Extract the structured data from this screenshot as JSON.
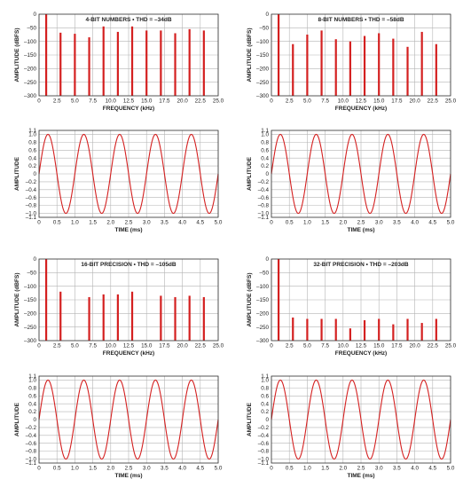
{
  "colors": {
    "signal": "#d42020",
    "grid": "#b4b4b4",
    "axis": "#333333",
    "background": "#ffffff"
  },
  "chart_data": [
    {
      "id": "spec4",
      "type": "bar",
      "subtype": "spectrum",
      "title": "4-BIT NUMBERS • THD = –34dB",
      "xlabel": "FREQUENCY (kHz)",
      "ylabel": "AMPLITUDE (dBFS)",
      "xlim": [
        0,
        25
      ],
      "ylim": [
        -300,
        0
      ],
      "xticks": [
        "0",
        "2.5",
        "5.0",
        "7.5",
        "10.0",
        "12.5",
        "15.0",
        "17.5",
        "20.0",
        "22.5",
        "25.0"
      ],
      "yticks": [
        "0",
        "–50",
        "–100",
        "–150",
        "–200",
        "–250",
        "–300"
      ],
      "grid": true,
      "x": [
        1,
        3,
        5,
        7,
        9,
        11,
        13,
        15,
        17,
        19,
        21,
        23
      ],
      "values": [
        0,
        -68,
        -72,
        -85,
        -45,
        -65,
        -45,
        -60,
        -60,
        -70,
        -55,
        -60
      ]
    },
    {
      "id": "spec8",
      "type": "bar",
      "subtype": "spectrum",
      "title": "8-BIT NUMBERS • THD = –58dB",
      "xlabel": "FREQUENCY (kHz)",
      "ylabel": "AMPLITUDE (dBFS)",
      "xlim": [
        0,
        25
      ],
      "ylim": [
        -300,
        0
      ],
      "xticks": [
        "0",
        "2.5",
        "5.0",
        "7.5",
        "10.0",
        "12.5",
        "15.0",
        "17.5",
        "20.0",
        "22.5",
        "25.0"
      ],
      "yticks": [
        "0",
        "–50",
        "–100",
        "–150",
        "–200",
        "–250",
        "–300"
      ],
      "grid": true,
      "x": [
        1,
        3,
        5,
        7,
        9,
        11,
        13,
        15,
        17,
        19,
        21,
        23
      ],
      "values": [
        0,
        -110,
        -75,
        -60,
        -92,
        -100,
        -80,
        -70,
        -90,
        -120,
        -65,
        -110
      ]
    },
    {
      "id": "spec16",
      "type": "bar",
      "subtype": "spectrum",
      "title": "16-BIT PRECISION • THD = –105dB",
      "xlabel": "FREQUENCY (kHz)",
      "ylabel": "AMPLITUDE (dBFS)",
      "xlim": [
        0,
        25
      ],
      "ylim": [
        -300,
        0
      ],
      "xticks": [
        "0",
        "2.5",
        "5.0",
        "7.5",
        "10.0",
        "12.5",
        "15.0",
        "17.5",
        "20.0",
        "22.5",
        "25.0"
      ],
      "yticks": [
        "0",
        "–50",
        "–100",
        "–150",
        "–200",
        "–250",
        "–300"
      ],
      "grid": true,
      "x": [
        1,
        3,
        7,
        9,
        11,
        13,
        17,
        19,
        21,
        23
      ],
      "values": [
        0,
        -120,
        -140,
        -130,
        -130,
        -120,
        -135,
        -140,
        -135,
        -140
      ]
    },
    {
      "id": "spec32",
      "type": "bar",
      "subtype": "spectrum",
      "title": "32-BIT PRECISION • THD = –203dB",
      "xlabel": "FREQUENCY (kHz)",
      "ylabel": "AMPLITUDE (dBFS)",
      "xlim": [
        0,
        25
      ],
      "ylim": [
        -300,
        0
      ],
      "xticks": [
        "0",
        "2.5",
        "5.0",
        "7.5",
        "10.0",
        "12.5",
        "15.0",
        "17.5",
        "20.0",
        "22.5",
        "25.0"
      ],
      "yticks": [
        "0",
        "–50",
        "–100",
        "–150",
        "–200",
        "–250",
        "–300"
      ],
      "grid": true,
      "x": [
        1,
        3,
        5,
        7,
        9,
        11,
        13,
        15,
        17,
        19,
        21,
        23
      ],
      "values": [
        0,
        -215,
        -220,
        -220,
        -220,
        -255,
        -225,
        -220,
        -240,
        -220,
        -235,
        -220
      ]
    },
    {
      "id": "sine-a",
      "type": "line",
      "subtype": "waveform",
      "title": "",
      "xlabel": "TIME (ms)",
      "ylabel": "AMPLITUDE",
      "xlim": [
        0,
        5
      ],
      "ylim": [
        -1.1,
        1.1
      ],
      "xticks": [
        "0",
        "0.5",
        "1.0",
        "1.5",
        "2.0",
        "2.5",
        "3.0",
        "3.5",
        "4.0",
        "4.5",
        "5.0"
      ],
      "yticks": [
        "1.1",
        "1.0",
        "0.8",
        "0.6",
        "0.4",
        "0.2",
        "0",
        "–0.2",
        "–0.4",
        "–0.6",
        "–0.8",
        "–1.0",
        "–1.1"
      ],
      "grid": true,
      "series": [
        {
          "frequency_khz": 1,
          "amplitude": 1.0,
          "x_values": [
            0,
            0.25,
            0.5,
            0.75,
            1.0,
            1.25,
            1.5,
            1.75,
            2.0,
            2.25,
            2.5,
            2.75,
            3.0,
            3.25,
            3.5,
            3.75,
            4.0,
            4.25,
            4.5,
            4.75,
            5.0
          ],
          "y_values": [
            0,
            1,
            0,
            -1,
            0,
            1,
            0,
            -1,
            0,
            1,
            0,
            -1,
            0,
            1,
            0,
            -1,
            0,
            1,
            0,
            -1,
            0
          ]
        }
      ]
    },
    {
      "id": "sine-b",
      "type": "line",
      "subtype": "waveform",
      "title": "",
      "xlabel": "TIME (ms)",
      "ylabel": "AMPLITUDE",
      "xlim": [
        0,
        5
      ],
      "ylim": [
        -1.1,
        1.1
      ],
      "xticks": [
        "0",
        "0.5",
        "1.0",
        "1.5",
        "2.0",
        "2.5",
        "3.0",
        "3.5",
        "4.0",
        "4.5",
        "5.0"
      ],
      "yticks": [
        "1.1",
        "1.0",
        "0.8",
        "0.6",
        "0.4",
        "0.2",
        "0",
        "–0.2",
        "–0.4",
        "–0.6",
        "–0.8",
        "–1.0",
        "–1.1"
      ],
      "grid": true,
      "series": [
        {
          "frequency_khz": 1,
          "amplitude": 1.0,
          "x_values": [
            0,
            0.25,
            0.5,
            0.75,
            1.0,
            1.25,
            1.5,
            1.75,
            2.0,
            2.25,
            2.5,
            2.75,
            3.0,
            3.25,
            3.5,
            3.75,
            4.0,
            4.25,
            4.5,
            4.75,
            5.0
          ],
          "y_values": [
            0,
            1,
            0,
            -1,
            0,
            1,
            0,
            -1,
            0,
            1,
            0,
            -1,
            0,
            1,
            0,
            -1,
            0,
            1,
            0,
            -1,
            0
          ]
        }
      ]
    },
    {
      "id": "sine-c",
      "type": "line",
      "subtype": "waveform",
      "title": "",
      "xlabel": "TIME (ms)",
      "ylabel": "AMPLITUDE",
      "xlim": [
        0,
        5
      ],
      "ylim": [
        -1.1,
        1.1
      ],
      "xticks": [
        "0",
        "0.5",
        "1.0",
        "1.5",
        "2.0",
        "2.5",
        "3.0",
        "3.5",
        "4.0",
        "4.5",
        "5.0"
      ],
      "yticks": [
        "1.1",
        "1.0",
        "0.8",
        "0.6",
        "0.4",
        "0.2",
        "0",
        "–0.2",
        "–0.4",
        "–0.6",
        "–0.8",
        "–1.0",
        "–1.1"
      ],
      "grid": true,
      "series": [
        {
          "frequency_khz": 1,
          "amplitude": 1.0,
          "x_values": [
            0,
            0.25,
            0.5,
            0.75,
            1.0,
            1.25,
            1.5,
            1.75,
            2.0,
            2.25,
            2.5,
            2.75,
            3.0,
            3.25,
            3.5,
            3.75,
            4.0,
            4.25,
            4.5,
            4.75,
            5.0
          ],
          "y_values": [
            0,
            1,
            0,
            -1,
            0,
            1,
            0,
            -1,
            0,
            1,
            0,
            -1,
            0,
            1,
            0,
            -1,
            0,
            1,
            0,
            -1,
            0
          ]
        }
      ]
    },
    {
      "id": "sine-d",
      "type": "line",
      "subtype": "waveform",
      "title": "",
      "xlabel": "TIME (ms)",
      "ylabel": "AMPLITUDE",
      "xlim": [
        0,
        5
      ],
      "ylim": [
        -1.1,
        1.1
      ],
      "xticks": [
        "0",
        "0.5",
        "1.0",
        "1.5",
        "2.0",
        "2.5",
        "3.0",
        "3.5",
        "4.0",
        "4.5",
        "5.0"
      ],
      "yticks": [
        "1.1",
        "1.0",
        "0.8",
        "0.6",
        "0.4",
        "0.2",
        "0",
        "–0.2",
        "–0.4",
        "–0.6",
        "–0.8",
        "–1.0",
        "–1.1"
      ],
      "grid": true,
      "series": [
        {
          "frequency_khz": 1,
          "amplitude": 1.0,
          "x_values": [
            0,
            0.25,
            0.5,
            0.75,
            1.0,
            1.25,
            1.5,
            1.75,
            2.0,
            2.25,
            2.5,
            2.75,
            3.0,
            3.25,
            3.5,
            3.75,
            4.0,
            4.25,
            4.5,
            4.75,
            5.0
          ],
          "y_values": [
            0,
            1,
            0,
            -1,
            0,
            1,
            0,
            -1,
            0,
            1,
            0,
            -1,
            0,
            1,
            0,
            -1,
            0,
            1,
            0,
            -1,
            0
          ]
        }
      ]
    }
  ]
}
